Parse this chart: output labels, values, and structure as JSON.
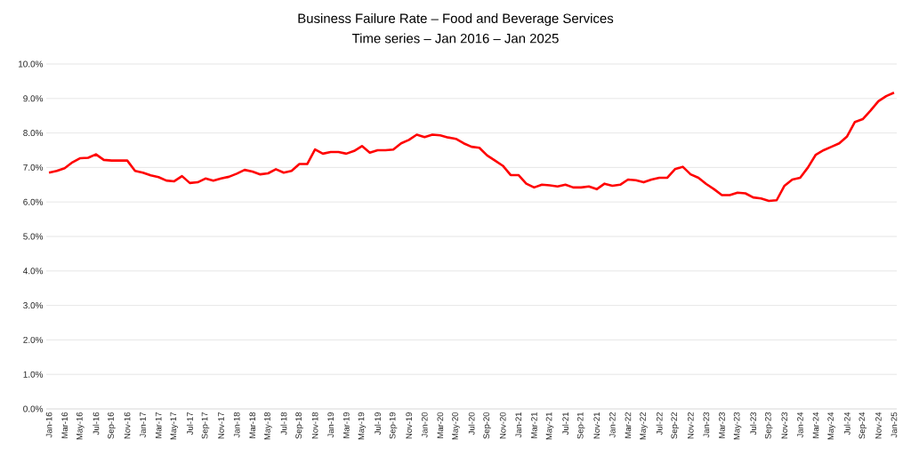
{
  "chart_data": {
    "type": "line",
    "title": "Business Failure Rate – Food and Beverage Services",
    "subtitle": "Time series – Jan 2016 – Jan 2025",
    "categories": [
      "Jan-16",
      null,
      "Mar-16",
      null,
      "May-16",
      null,
      "Jul-16",
      null,
      "Sep-16",
      null,
      "Nov-16",
      null,
      "Jan-17",
      null,
      "Mar-17",
      null,
      "May-17",
      null,
      "Jul-17",
      null,
      "Sep-17",
      null,
      "Nov-17",
      null,
      "Jan-18",
      null,
      "Mar-18",
      null,
      "May-18",
      null,
      "Jul-18",
      null,
      "Sep-18",
      null,
      "Nov-18",
      null,
      "Jan-19",
      null,
      "Mar-19",
      null,
      "May-19",
      null,
      "Jul-19",
      null,
      "Sep-19",
      null,
      "Nov-19",
      null,
      "Jan-20",
      null,
      "Mar-20",
      null,
      "May-20",
      null,
      "Jul-20",
      null,
      "Sep-20",
      null,
      "Nov-20",
      null,
      "Jan-21",
      null,
      "Mar-21",
      null,
      "May-21",
      null,
      "Jul-21",
      null,
      "Sep-21",
      null,
      "Nov-21",
      null,
      "Jan-22",
      null,
      "Mar-22",
      null,
      "May-22",
      null,
      "Jul-22",
      null,
      "Sep-22",
      null,
      "Nov-22",
      null,
      "Jan-23",
      null,
      "Mar-23",
      null,
      "May-23",
      null,
      "Jul-23",
      null,
      "Sep-23",
      null,
      "Nov-23",
      null,
      "Jan-24",
      null,
      "Mar-24",
      null,
      "May-24",
      null,
      "Jul-24",
      null,
      "Sep-24",
      null,
      "Nov-24",
      null,
      "Jan-25"
    ],
    "series": [
      {
        "color": "#ff0000",
        "values": [
          6.85,
          6.9,
          6.98,
          7.15,
          7.27,
          7.28,
          7.38,
          7.22,
          7.2,
          7.2,
          7.2,
          6.9,
          6.85,
          6.77,
          6.72,
          6.62,
          6.6,
          6.75,
          6.55,
          6.57,
          6.68,
          6.62,
          6.68,
          6.73,
          6.82,
          6.93,
          6.88,
          6.8,
          6.83,
          6.95,
          6.85,
          6.9,
          7.1,
          7.1,
          7.52,
          7.4,
          7.45,
          7.45,
          7.4,
          7.48,
          7.62,
          7.43,
          7.5,
          7.5,
          7.52,
          7.7,
          7.8,
          7.95,
          7.88,
          7.95,
          7.93,
          7.87,
          7.83,
          7.7,
          7.6,
          7.57,
          7.35,
          7.2,
          7.05,
          6.78,
          6.78,
          6.53,
          6.42,
          6.5,
          6.48,
          6.45,
          6.5,
          6.42,
          6.42,
          6.45,
          6.37,
          6.53,
          6.47,
          6.5,
          6.65,
          6.63,
          6.57,
          6.65,
          6.7,
          6.7,
          6.95,
          7.02,
          6.8,
          6.7,
          6.52,
          6.37,
          6.2,
          6.2,
          6.27,
          6.25,
          6.13,
          6.1,
          6.03,
          6.05,
          6.47,
          6.65,
          6.7,
          7.0,
          7.37,
          7.5,
          7.6,
          7.7,
          7.9,
          8.32,
          8.4,
          8.65,
          8.92,
          9.07,
          9.17
        ]
      }
    ],
    "ylim": [
      0,
      10
    ],
    "yticks": [
      {
        "value": 0,
        "label": "0.0%"
      },
      {
        "value": 1,
        "label": "1.0%"
      },
      {
        "value": 2,
        "label": "2.0%"
      },
      {
        "value": 3,
        "label": "3.0%"
      },
      {
        "value": 4,
        "label": "4.0%"
      },
      {
        "value": 5,
        "label": "5.0%"
      },
      {
        "value": 6,
        "label": "6.0%"
      },
      {
        "value": 7,
        "label": "7.0%"
      },
      {
        "value": 8,
        "label": "8.0%"
      },
      {
        "value": 9,
        "label": "9.0%"
      },
      {
        "value": 10,
        "label": "10.0%"
      }
    ],
    "grid": "y",
    "marker": "none",
    "line_style": "solid"
  }
}
